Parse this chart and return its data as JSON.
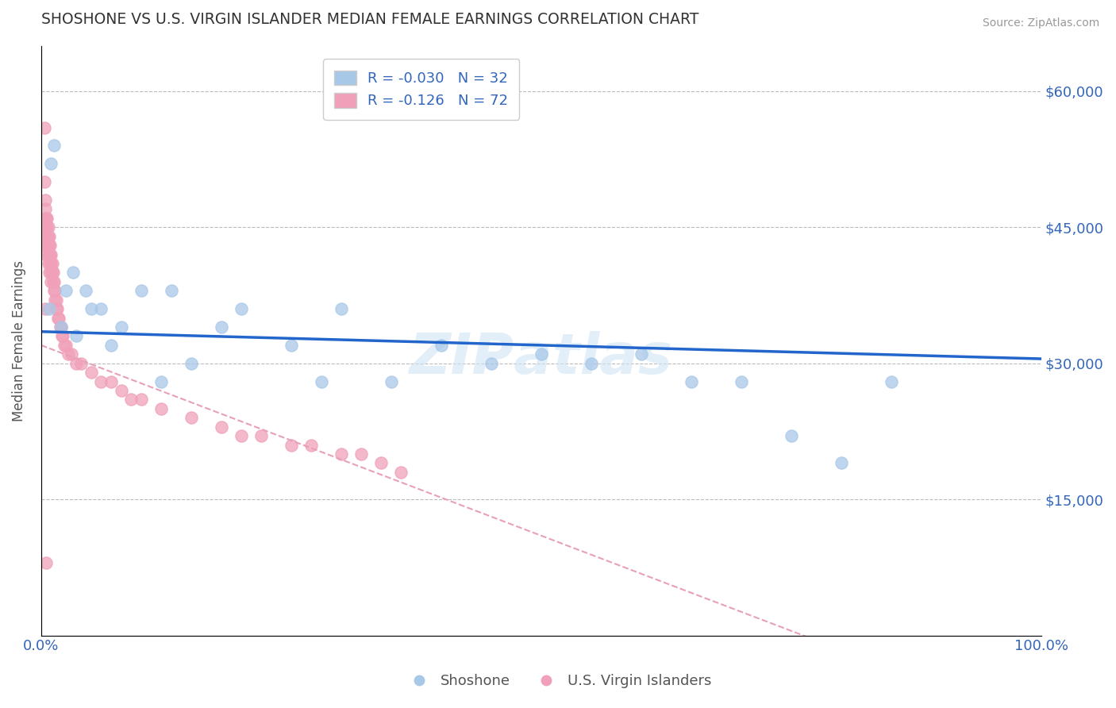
{
  "title": "SHOSHONE VS U.S. VIRGIN ISLANDER MEDIAN FEMALE EARNINGS CORRELATION CHART",
  "source": "Source: ZipAtlas.com",
  "ylabel": "Median Female Earnings",
  "xlim": [
    0,
    100
  ],
  "ylim": [
    0,
    65000
  ],
  "yticks": [
    0,
    15000,
    30000,
    45000,
    60000
  ],
  "ytick_labels": [
    "",
    "$15,000",
    "$30,000",
    "$45,000",
    "$60,000"
  ],
  "shoshone_R": -0.03,
  "shoshone_N": 32,
  "virgin_R": -0.126,
  "virgin_N": 72,
  "shoshone_color": "#a8c8e8",
  "virgin_color": "#f0a0b8",
  "shoshone_line_color": "#2266cc",
  "virgin_line_color": "#e8a0b8",
  "shoshone_x": [
    1.0,
    1.3,
    2.5,
    3.2,
    4.5,
    6.0,
    8.0,
    10.0,
    13.0,
    15.0,
    18.0,
    20.0,
    25.0,
    30.0,
    35.0,
    40.0,
    50.0,
    55.0,
    60.0,
    65.0,
    70.0,
    75.0,
    80.0,
    0.8,
    2.0,
    3.5,
    5.0,
    7.0,
    12.0,
    28.0,
    45.0,
    85.0
  ],
  "shoshone_y": [
    52000,
    54000,
    38000,
    40000,
    38000,
    36000,
    34000,
    38000,
    38000,
    30000,
    34000,
    36000,
    32000,
    36000,
    28000,
    32000,
    31000,
    30000,
    31000,
    28000,
    28000,
    22000,
    19000,
    36000,
    34000,
    33000,
    36000,
    32000,
    28000,
    28000,
    30000,
    28000
  ],
  "virgin_x": [
    0.3,
    0.3,
    0.4,
    0.4,
    0.4,
    0.5,
    0.5,
    0.5,
    0.5,
    0.5,
    0.6,
    0.6,
    0.6,
    0.6,
    0.7,
    0.7,
    0.7,
    0.7,
    0.7,
    0.8,
    0.8,
    0.8,
    0.8,
    0.9,
    0.9,
    0.9,
    1.0,
    1.0,
    1.0,
    1.0,
    1.1,
    1.1,
    1.2,
    1.2,
    1.3,
    1.3,
    1.4,
    1.4,
    1.5,
    1.5,
    1.6,
    1.7,
    1.8,
    1.9,
    2.0,
    2.1,
    2.2,
    2.3,
    2.5,
    2.7,
    3.0,
    3.5,
    4.0,
    5.0,
    6.0,
    7.0,
    8.0,
    9.0,
    10.0,
    12.0,
    15.0,
    18.0,
    20.0,
    22.0,
    25.0,
    27.0,
    30.0,
    32.0,
    34.0,
    36.0,
    0.5,
    0.4
  ],
  "virgin_y": [
    56000,
    50000,
    48000,
    47000,
    46000,
    46000,
    45000,
    44000,
    43000,
    42000,
    46000,
    45000,
    44000,
    43000,
    45000,
    44000,
    43000,
    42000,
    41000,
    44000,
    43000,
    42000,
    40000,
    43000,
    42000,
    41000,
    42000,
    41000,
    40000,
    39000,
    41000,
    40000,
    40000,
    39000,
    39000,
    38000,
    38000,
    37000,
    37000,
    36000,
    36000,
    35000,
    35000,
    34000,
    34000,
    33000,
    33000,
    32000,
    32000,
    31000,
    31000,
    30000,
    30000,
    29000,
    28000,
    28000,
    27000,
    26000,
    26000,
    25000,
    24000,
    23000,
    22000,
    22000,
    21000,
    21000,
    20000,
    20000,
    19000,
    18000,
    8000,
    36000
  ]
}
